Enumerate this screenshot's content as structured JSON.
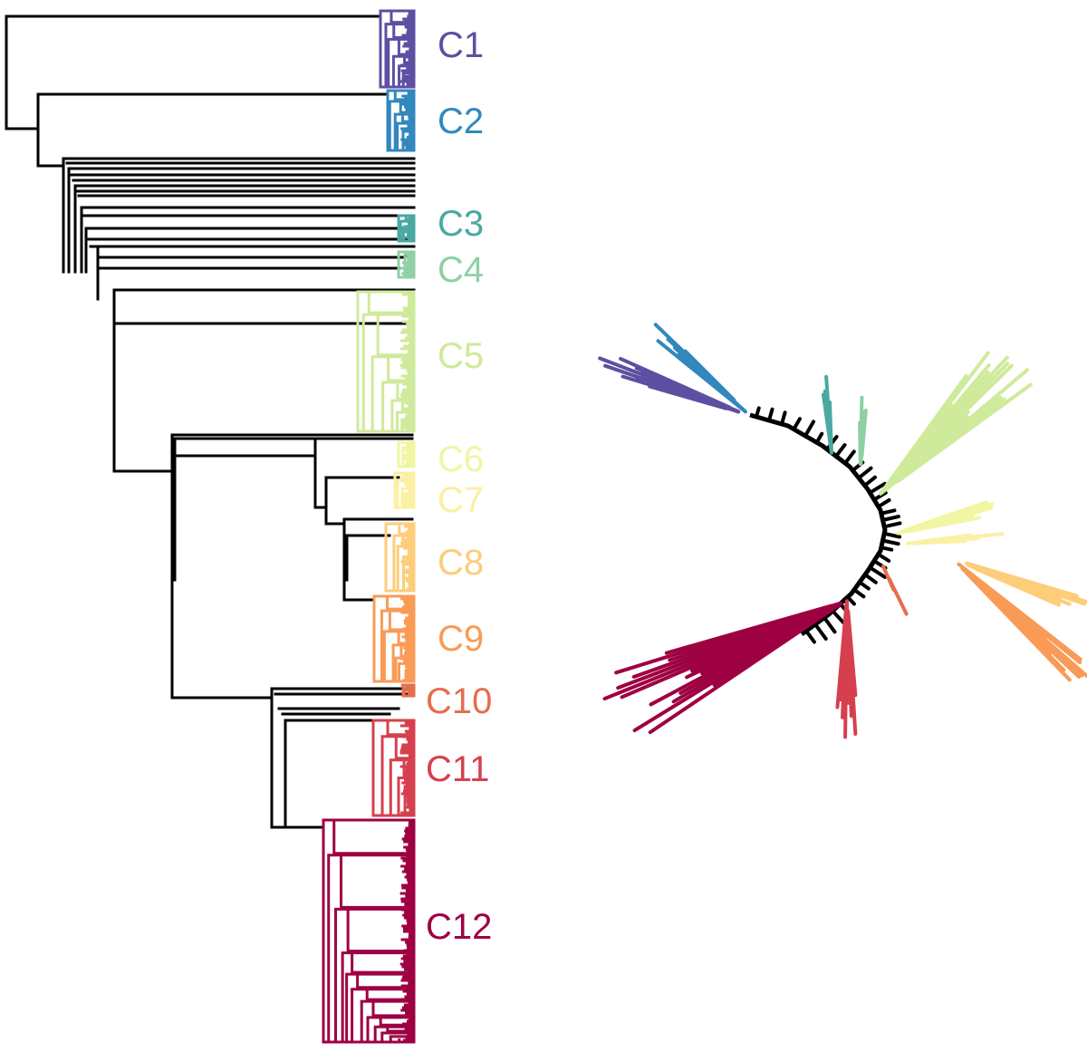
{
  "figure": {
    "panel_left": "Rectangular dendrogram (hierarchical clustering) with 12 colored clusters",
    "panel_right": "Unrooted radial tree with the same 12 cluster colors"
  },
  "clusters": [
    {
      "id": "C1",
      "label": "C1",
      "color": "#5e4fa2",
      "tips": 16
    },
    {
      "id": "C2",
      "label": "C2",
      "color": "#3288bd",
      "tips": 14
    },
    {
      "id": "C3",
      "label": "C3",
      "color": "#4aa9a2",
      "tips": 6
    },
    {
      "id": "C4",
      "label": "C4",
      "color": "#8fd0a4",
      "tips": 6
    },
    {
      "id": "C5",
      "label": "C5",
      "color": "#cfea9b",
      "tips": 38
    },
    {
      "id": "C6",
      "label": "C6",
      "color": "#f0f6a3",
      "tips": 6
    },
    {
      "id": "C7",
      "label": "C7",
      "color": "#fbf0a3",
      "tips": 6
    },
    {
      "id": "C8",
      "label": "C8",
      "color": "#fdcd7a",
      "tips": 16
    },
    {
      "id": "C9",
      "label": "C9",
      "color": "#f99b57",
      "tips": 20
    },
    {
      "id": "C10",
      "label": "C10",
      "color": "#e56e4d",
      "tips": 4
    },
    {
      "id": "C11",
      "label": "C11",
      "color": "#d6404e",
      "tips": 26
    },
    {
      "id": "C12",
      "label": "C12",
      "color": "#9e0142",
      "tips": 58
    }
  ],
  "colors": {
    "backbone": "#000000",
    "background": "#ffffff"
  }
}
